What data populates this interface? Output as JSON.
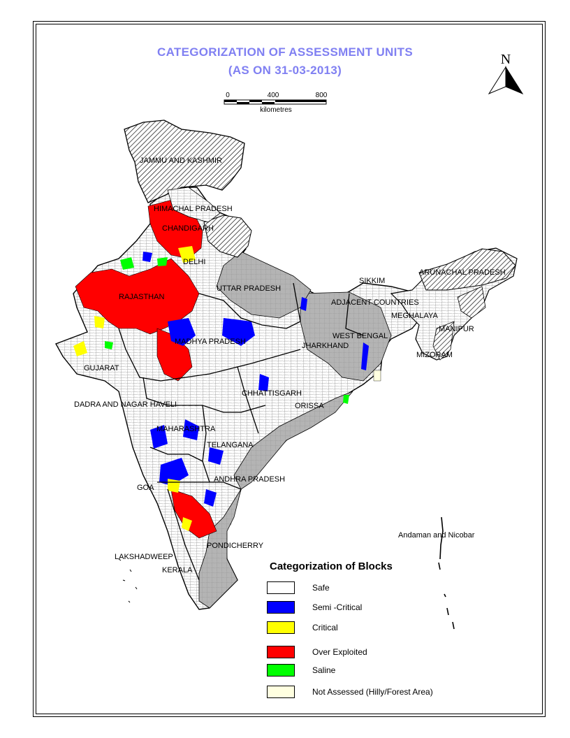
{
  "title_line1": "CATEGORIZATION OF ASSESSMENT UNITS",
  "title_line2": "(AS ON 31-03-2013)",
  "north_label": "N",
  "scale": {
    "ticks": [
      "0",
      "400",
      "800"
    ],
    "unit": "kilometres"
  },
  "legend": {
    "title": "Categorization of Blocks",
    "items": [
      {
        "label": "Safe",
        "color": "#ffffff"
      },
      {
        "label": "Semi -Critical",
        "color": "#0000ff"
      },
      {
        "label": "Critical",
        "color": "#ffff00"
      },
      {
        "label": "Over Exploited",
        "color": "#ff0000"
      },
      {
        "label": "Saline",
        "color": "#00ff00"
      },
      {
        "label": "Not Assessed (Hilly/Forest Area)",
        "color": "#ffffe0"
      }
    ]
  },
  "map_labels": {
    "jammu": "JAMMU AND KASHMIR",
    "himachal": "HIMACHAL PRADESH",
    "chandigarh": "CHANDIGARH",
    "delhi": "DELHI",
    "rajasthan": "RAJASTHAN",
    "uttar_pradesh": "UTTAR PRADESH",
    "sikkim": "SIKKIM",
    "arunachal": "ARUNACHAL PRADESH",
    "adjacent": "ADJACENT COUNTRIES",
    "meghalaya": "MEGHALAYA",
    "manipur": "MANIPUR",
    "mizoram": "MIZORAM",
    "west_bengal": "WEST BENGAL",
    "jharkhand": "JHARKHAND",
    "madhya_pradesh": "MADHYA PRADESH",
    "gujarat": "GUJARAT",
    "dadra": "DADRA AND NAGAR HAVELI",
    "chhattisgarh": "CHHATTISGARH",
    "orissa": "ORISSA",
    "maharashtra": "MAHARASHTRA",
    "telangana": "TELANGANA",
    "andhra": "ANDHRA PRADESH",
    "goa": "GOA",
    "pondicherry": "PONDICHERRY",
    "lakshadweep": "LAKSHADWEEP",
    "kerala": "KERALA",
    "andaman": "Andaman and Nicobar"
  },
  "colors": {
    "title": "#8080f2",
    "safe": "#ffffff",
    "semi_critical": "#0000ff",
    "critical": "#ffff00",
    "over_exploited": "#ff0000",
    "saline": "#00ff00",
    "not_assessed": "#ffffe0",
    "grey_region": "#b4b4b4"
  }
}
